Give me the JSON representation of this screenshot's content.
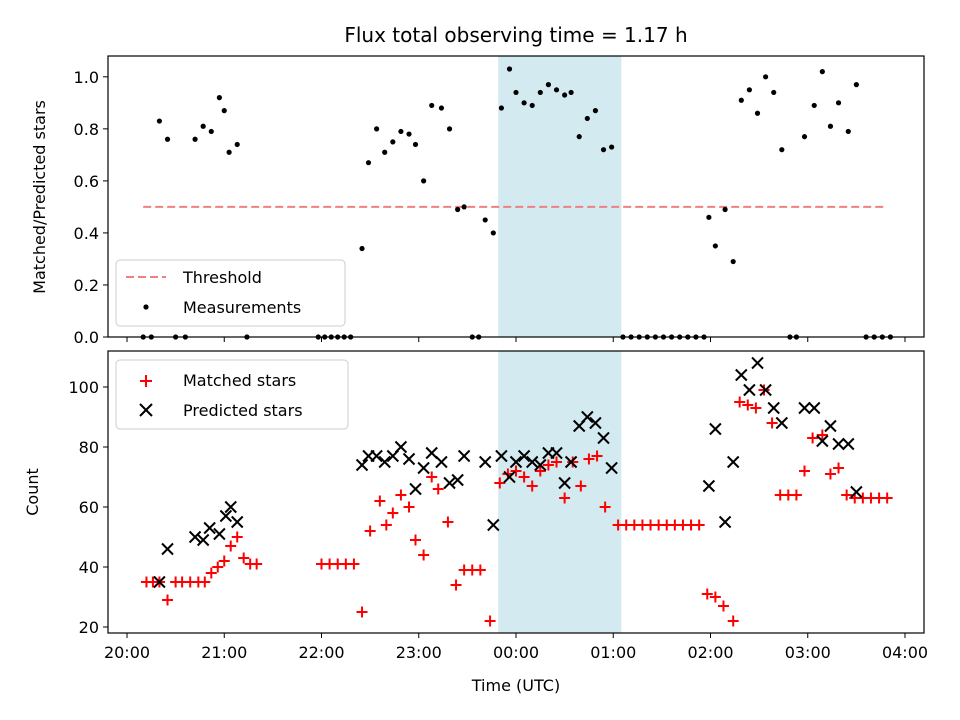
{
  "chart_data": [
    {
      "type": "scatter",
      "title": "Flux total observing time = 1.17 h",
      "ylabel": "Matched/Predicted stars",
      "xlabel": "",
      "xlim": [
        "20:00",
        "04:00"
      ],
      "ylim": [
        0,
        1.08
      ],
      "yticks": [
        "0.0",
        "0.2",
        "0.4",
        "0.6",
        "0.8",
        "1.0"
      ],
      "yticks_values": [
        0,
        0.2,
        0.4,
        0.6,
        0.8,
        1.0
      ],
      "highlight_span": {
        "start": "23:49",
        "end": "01:05",
        "color": "#d3eaf1"
      },
      "threshold": {
        "name": "Threshold",
        "value": 0.5,
        "x": [
          "20:10",
          "03:48"
        ],
        "color": "#f08080"
      },
      "series": [
        {
          "name": "Measurements",
          "color": "#000000",
          "points": [
            [
              "20:10",
              0
            ],
            [
              "20:15",
              0
            ],
            [
              "20:20",
              0.83
            ],
            [
              "20:25",
              0.76
            ],
            [
              "20:30",
              0
            ],
            [
              "20:36",
              0
            ],
            [
              "20:42",
              0.76
            ],
            [
              "20:47",
              0.81
            ],
            [
              "20:52",
              0.79
            ],
            [
              "20:57",
              0.92
            ],
            [
              "21:00",
              0.87
            ],
            [
              "21:03",
              0.71
            ],
            [
              "21:08",
              0.74
            ],
            [
              "21:14",
              0
            ],
            [
              "21:58",
              0
            ],
            [
              "22:02",
              0
            ],
            [
              "22:06",
              0
            ],
            [
              "22:10",
              0
            ],
            [
              "22:14",
              0
            ],
            [
              "22:18",
              0
            ],
            [
              "22:25",
              0.34
            ],
            [
              "22:29",
              0.67
            ],
            [
              "22:34",
              0.8
            ],
            [
              "22:39",
              0.71
            ],
            [
              "22:44",
              0.75
            ],
            [
              "22:49",
              0.79
            ],
            [
              "22:54",
              0.78
            ],
            [
              "22:58",
              0.74
            ],
            [
              "23:03",
              0.6
            ],
            [
              "23:08",
              0.89
            ],
            [
              "23:14",
              0.88
            ],
            [
              "23:19",
              0.8
            ],
            [
              "23:24",
              0.49
            ],
            [
              "23:28",
              0.5
            ],
            [
              "23:33",
              0
            ],
            [
              "23:37",
              0
            ],
            [
              "23:41",
              0.45
            ],
            [
              "23:46",
              0.4
            ],
            [
              "23:51",
              0.88
            ],
            [
              "23:56",
              1.03
            ],
            [
              "00:00",
              0.94
            ],
            [
              "00:05",
              0.9
            ],
            [
              "00:10",
              0.89
            ],
            [
              "00:15",
              0.94
            ],
            [
              "00:20",
              0.97
            ],
            [
              "00:25",
              0.95
            ],
            [
              "00:30",
              0.93
            ],
            [
              "00:34",
              0.94
            ],
            [
              "00:39",
              0.77
            ],
            [
              "00:44",
              0.84
            ],
            [
              "00:49",
              0.87
            ],
            [
              "00:54",
              0.72
            ],
            [
              "00:59",
              0.73
            ],
            [
              "01:06",
              0
            ],
            [
              "01:11",
              0
            ],
            [
              "01:16",
              0
            ],
            [
              "01:21",
              0
            ],
            [
              "01:26",
              0
            ],
            [
              "01:31",
              0
            ],
            [
              "01:36",
              0
            ],
            [
              "01:41",
              0
            ],
            [
              "01:46",
              0
            ],
            [
              "01:51",
              0
            ],
            [
              "01:56",
              0
            ],
            [
              "01:59",
              0.46
            ],
            [
              "02:03",
              0.35
            ],
            [
              "02:09",
              0.49
            ],
            [
              "02:14",
              0.29
            ],
            [
              "02:19",
              0.91
            ],
            [
              "02:24",
              0.95
            ],
            [
              "02:29",
              0.86
            ],
            [
              "02:34",
              1.0
            ],
            [
              "02:39",
              0.94
            ],
            [
              "02:44",
              0.72
            ],
            [
              "02:49",
              0
            ],
            [
              "02:53",
              0
            ],
            [
              "02:58",
              0.77
            ],
            [
              "03:04",
              0.89
            ],
            [
              "03:09",
              1.02
            ],
            [
              "03:14",
              0.81
            ],
            [
              "03:19",
              0.9
            ],
            [
              "03:25",
              0.79
            ],
            [
              "03:30",
              0.97
            ],
            [
              "03:36",
              0
            ],
            [
              "03:41",
              0
            ],
            [
              "03:46",
              0
            ],
            [
              "03:51",
              0
            ]
          ]
        }
      ],
      "legend": {
        "placement": "lower-left",
        "entries": [
          "Threshold",
          "Measurements"
        ]
      }
    },
    {
      "type": "scatter",
      "title": "",
      "xlabel": "Time (UTC)",
      "ylabel": "Count",
      "xlim": [
        "20:00",
        "04:00"
      ],
      "ylim": [
        18,
        112
      ],
      "xticks": [
        "20:00",
        "21:00",
        "22:00",
        "23:00",
        "00:00",
        "01:00",
        "02:00",
        "03:00",
        "04:00"
      ],
      "yticks": [
        "20",
        "40",
        "60",
        "80",
        "100"
      ],
      "yticks_values": [
        20,
        40,
        60,
        80,
        100
      ],
      "highlight_span": {
        "start": "23:49",
        "end": "01:05",
        "color": "#d3eaf1"
      },
      "series": [
        {
          "name": "Matched stars",
          "marker": "plus",
          "color": "#ff0000",
          "points": [
            [
              "20:12",
              35
            ],
            [
              "20:16",
              35
            ],
            [
              "20:20",
              35
            ],
            [
              "20:25",
              29
            ],
            [
              "20:30",
              35
            ],
            [
              "20:34",
              35
            ],
            [
              "20:39",
              35
            ],
            [
              "20:44",
              35
            ],
            [
              "20:48",
              35
            ],
            [
              "20:52",
              38
            ],
            [
              "20:56",
              40
            ],
            [
              "21:00",
              42
            ],
            [
              "21:04",
              47
            ],
            [
              "21:08",
              50
            ],
            [
              "21:12",
              43
            ],
            [
              "21:16",
              41
            ],
            [
              "21:20",
              41
            ],
            [
              "22:00",
              41
            ],
            [
              "22:05",
              41
            ],
            [
              "22:10",
              41
            ],
            [
              "22:15",
              41
            ],
            [
              "22:20",
              41
            ],
            [
              "22:25",
              25
            ],
            [
              "22:30",
              52
            ],
            [
              "22:36",
              62
            ],
            [
              "22:40",
              54
            ],
            [
              "22:44",
              58
            ],
            [
              "22:49",
              64
            ],
            [
              "22:54",
              60
            ],
            [
              "22:58",
              49
            ],
            [
              "23:03",
              44
            ],
            [
              "23:08",
              70
            ],
            [
              "23:12",
              66
            ],
            [
              "23:18",
              55
            ],
            [
              "23:23",
              34
            ],
            [
              "23:28",
              39
            ],
            [
              "23:33",
              39
            ],
            [
              "23:38",
              39
            ],
            [
              "23:44",
              22
            ],
            [
              "23:50",
              68
            ],
            [
              "23:55",
              71
            ],
            [
              "00:00",
              72
            ],
            [
              "00:05",
              70
            ],
            [
              "00:10",
              67
            ],
            [
              "00:15",
              72
            ],
            [
              "00:20",
              74
            ],
            [
              "00:25",
              75
            ],
            [
              "00:30",
              63
            ],
            [
              "00:35",
              75
            ],
            [
              "00:40",
              67
            ],
            [
              "00:45",
              76
            ],
            [
              "00:50",
              77
            ],
            [
              "00:55",
              60
            ],
            [
              "01:03",
              54
            ],
            [
              "01:08",
              54
            ],
            [
              "01:13",
              54
            ],
            [
              "01:18",
              54
            ],
            [
              "01:23",
              54
            ],
            [
              "01:28",
              54
            ],
            [
              "01:33",
              54
            ],
            [
              "01:38",
              54
            ],
            [
              "01:43",
              54
            ],
            [
              "01:48",
              54
            ],
            [
              "01:53",
              54
            ],
            [
              "01:58",
              31
            ],
            [
              "02:03",
              30
            ],
            [
              "02:08",
              27
            ],
            [
              "02:14",
              22
            ],
            [
              "02:18",
              95
            ],
            [
              "02:23",
              94
            ],
            [
              "02:28",
              93
            ],
            [
              "02:33",
              99
            ],
            [
              "02:38",
              88
            ],
            [
              "02:43",
              64
            ],
            [
              "02:48",
              64
            ],
            [
              "02:53",
              64
            ],
            [
              "02:58",
              72
            ],
            [
              "03:03",
              83
            ],
            [
              "03:09",
              84
            ],
            [
              "03:14",
              71
            ],
            [
              "03:19",
              73
            ],
            [
              "03:24",
              64
            ],
            [
              "03:29",
              63
            ],
            [
              "03:34",
              63
            ],
            [
              "03:39",
              63
            ],
            [
              "03:44",
              63
            ],
            [
              "03:49",
              63
            ]
          ]
        },
        {
          "name": "Predicted stars",
          "marker": "x",
          "color": "#000000",
          "points": [
            [
              "20:20",
              35
            ],
            [
              "20:25",
              46
            ],
            [
              "20:42",
              50
            ],
            [
              "20:47",
              49
            ],
            [
              "20:51",
              53
            ],
            [
              "20:57",
              51
            ],
            [
              "21:01",
              57
            ],
            [
              "21:04",
              60
            ],
            [
              "21:08",
              55
            ],
            [
              "22:25",
              74
            ],
            [
              "22:29",
              77
            ],
            [
              "22:34",
              77
            ],
            [
              "22:39",
              75
            ],
            [
              "22:44",
              77
            ],
            [
              "22:49",
              80
            ],
            [
              "22:54",
              76
            ],
            [
              "22:58",
              66
            ],
            [
              "23:03",
              73
            ],
            [
              "23:08",
              78
            ],
            [
              "23:14",
              75
            ],
            [
              "23:19",
              68
            ],
            [
              "23:24",
              69
            ],
            [
              "23:28",
              77
            ],
            [
              "23:41",
              75
            ],
            [
              "23:46",
              54
            ],
            [
              "23:51",
              77
            ],
            [
              "23:56",
              70
            ],
            [
              "00:00",
              75
            ],
            [
              "00:05",
              77
            ],
            [
              "00:10",
              75
            ],
            [
              "00:15",
              74
            ],
            [
              "00:20",
              78
            ],
            [
              "00:25",
              78
            ],
            [
              "00:30",
              68
            ],
            [
              "00:34",
              75
            ],
            [
              "00:39",
              87
            ],
            [
              "00:44",
              90
            ],
            [
              "00:49",
              88
            ],
            [
              "00:54",
              83
            ],
            [
              "00:59",
              73
            ],
            [
              "01:59",
              67
            ],
            [
              "02:03",
              86
            ],
            [
              "02:09",
              55
            ],
            [
              "02:14",
              75
            ],
            [
              "02:19",
              104
            ],
            [
              "02:24",
              99
            ],
            [
              "02:29",
              108
            ],
            [
              "02:34",
              99
            ],
            [
              "02:39",
              93
            ],
            [
              "02:44",
              88
            ],
            [
              "02:58",
              93
            ],
            [
              "03:04",
              93
            ],
            [
              "03:09",
              82
            ],
            [
              "03:14",
              87
            ],
            [
              "03:19",
              81
            ],
            [
              "03:25",
              81
            ],
            [
              "03:30",
              65
            ]
          ]
        }
      ],
      "legend": {
        "placement": "upper-left",
        "entries": [
          "Matched stars",
          "Predicted stars"
        ]
      }
    }
  ]
}
